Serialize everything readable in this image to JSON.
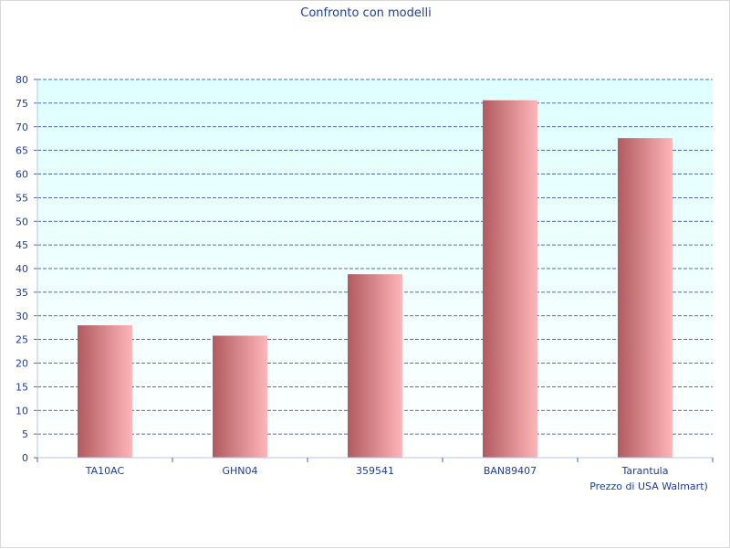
{
  "chart_data": {
    "type": "bar",
    "title": "Confronto con modelli",
    "xlabel": "",
    "ylabel": "",
    "categories": [
      "TA10AC",
      "GHN04",
      "359541",
      "BAN89407",
      "Tarantula"
    ],
    "values": [
      28,
      25.8,
      38.8,
      75.6,
      67.6
    ],
    "ylim": [
      0,
      80
    ],
    "yticks": [
      "0",
      "5",
      "10",
      "15",
      "20",
      "25",
      "30",
      "35",
      "40",
      "45",
      "50",
      "55",
      "60",
      "65",
      "70",
      "75",
      "80"
    ],
    "annotations": [
      "Prezzo di USA Walmart)"
    ],
    "grid": true,
    "legend": "none",
    "colors": {
      "bar_dark": "#b05a5f",
      "bar_light": "#ffb6b8",
      "plot_bg_top": "#dfffff",
      "plot_bg_bottom": "#ffffff",
      "grid": "#1a3ea0",
      "text": "#1a3ea0"
    }
  }
}
